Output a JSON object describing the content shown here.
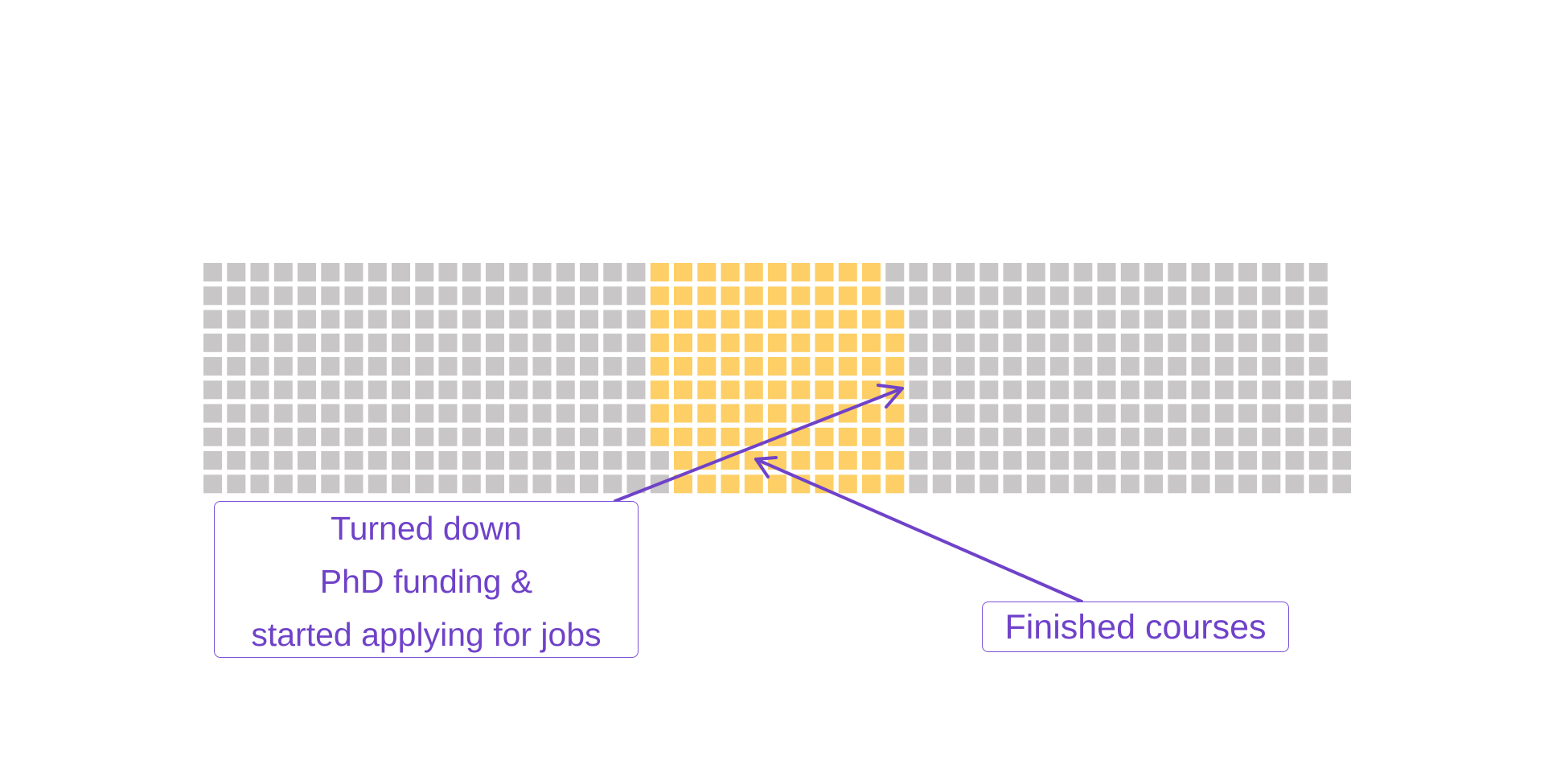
{
  "colors": {
    "cell_default": "#c8c6c6",
    "cell_highlight": "#fdcf66",
    "annotation": "#6f42c9"
  },
  "waffle": {
    "rows": 10,
    "row_lengths": [
      48,
      48,
      48,
      48,
      48,
      49,
      49,
      49,
      49,
      49
    ],
    "highlight_ranges": [
      [
        19,
        28
      ],
      [
        19,
        28
      ],
      [
        19,
        29
      ],
      [
        19,
        29
      ],
      [
        19,
        29
      ],
      [
        19,
        29
      ],
      [
        19,
        29
      ],
      [
        19,
        29
      ],
      [
        20,
        29
      ],
      [
        20,
        29
      ]
    ]
  },
  "annotations": {
    "phd": {
      "lines": [
        "Turned down",
        "PhD funding &",
        "started applying for jobs"
      ]
    },
    "courses": {
      "label": "Finished courses"
    }
  }
}
